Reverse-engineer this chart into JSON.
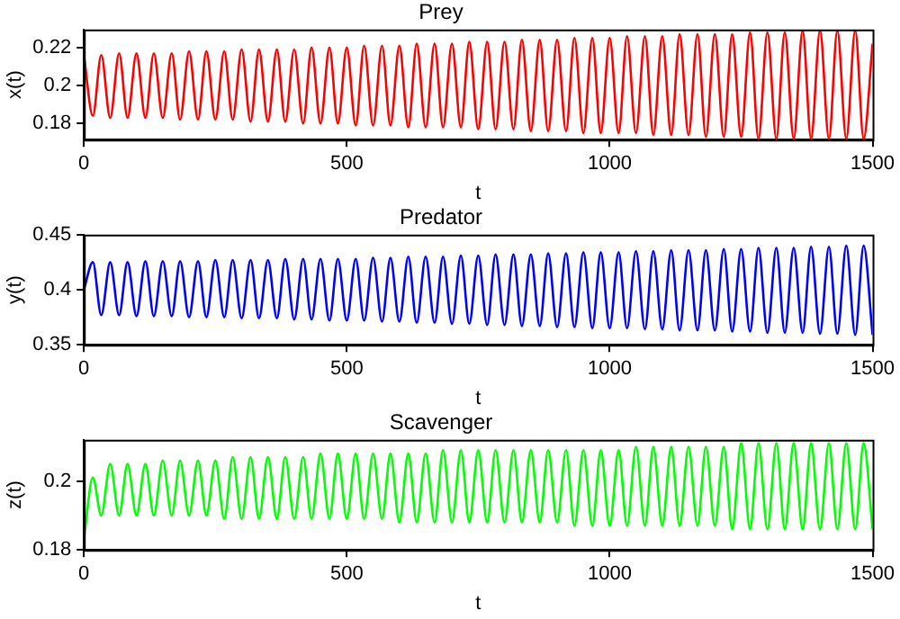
{
  "chart_data": [
    {
      "type": "line",
      "title": "Prey",
      "xlabel": "t",
      "ylabel": "x(t)",
      "xlim": [
        0,
        1500
      ],
      "xticks": [
        0,
        500,
        1000,
        1500
      ],
      "ylim": [
        0.1715,
        0.2295
      ],
      "yticks": [
        0.18,
        0.2,
        0.22
      ],
      "grid": false,
      "legend": false,
      "marker": "none",
      "line_style": "solid",
      "x": [
        0,
        17,
        33,
        50,
        67,
        83,
        100,
        117,
        133,
        150,
        167,
        183,
        200,
        217,
        233,
        250,
        267,
        283,
        300,
        317,
        333,
        350,
        367,
        383,
        400,
        417,
        433,
        450,
        467,
        483,
        500,
        517,
        533,
        550,
        567,
        583,
        600,
        617,
        633,
        650,
        667,
        683,
        700,
        717,
        733,
        750,
        767,
        783,
        800,
        817,
        833,
        850,
        867,
        883,
        900,
        917,
        933,
        950,
        967,
        983,
        1000,
        1017,
        1033,
        1050,
        1067,
        1083,
        1100,
        1117,
        1133,
        1150,
        1167,
        1183,
        1200,
        1217,
        1233,
        1250,
        1267,
        1283,
        1300,
        1317,
        1333,
        1350,
        1367,
        1383,
        1400,
        1417,
        1433,
        1450,
        1467,
        1483,
        1500
      ],
      "series": [
        {
          "color": "#ff0000",
          "values": [
            0.216,
            0.184,
            0.216,
            0.183,
            0.217,
            0.183,
            0.217,
            0.183,
            0.217,
            0.183,
            0.217,
            0.182,
            0.218,
            0.182,
            0.218,
            0.182,
            0.218,
            0.182,
            0.219,
            0.181,
            0.219,
            0.181,
            0.219,
            0.181,
            0.219,
            0.18,
            0.22,
            0.18,
            0.22,
            0.18,
            0.22,
            0.179,
            0.221,
            0.179,
            0.221,
            0.179,
            0.221,
            0.178,
            0.222,
            0.178,
            0.222,
            0.178,
            0.222,
            0.178,
            0.223,
            0.177,
            0.223,
            0.177,
            0.223,
            0.177,
            0.224,
            0.176,
            0.224,
            0.176,
            0.224,
            0.176,
            0.225,
            0.175,
            0.225,
            0.175,
            0.225,
            0.175,
            0.226,
            0.175,
            0.226,
            0.174,
            0.226,
            0.174,
            0.227,
            0.174,
            0.227,
            0.173,
            0.227,
            0.173,
            0.227,
            0.173,
            0.228,
            0.172,
            0.228,
            0.172,
            0.228,
            0.172,
            0.229,
            0.172,
            0.229,
            0.172,
            0.229,
            0.172,
            0.229,
            0.172,
            0.222
          ]
        }
      ]
    },
    {
      "type": "line",
      "title": "Predator",
      "xlabel": "t",
      "ylabel": "y(t)",
      "xlim": [
        0,
        1500
      ],
      "xticks": [
        0,
        500,
        1000,
        1500
      ],
      "ylim": [
        0.35,
        0.45
      ],
      "yticks": [
        0.35,
        0.4,
        0.45
      ],
      "grid": false,
      "legend": false,
      "marker": "none",
      "line_style": "solid",
      "x": [
        0,
        17,
        33,
        50,
        67,
        83,
        100,
        117,
        133,
        150,
        167,
        183,
        200,
        217,
        233,
        250,
        267,
        283,
        300,
        317,
        333,
        350,
        367,
        383,
        400,
        417,
        433,
        450,
        467,
        483,
        500,
        517,
        533,
        550,
        567,
        583,
        600,
        617,
        633,
        650,
        667,
        683,
        700,
        717,
        733,
        750,
        767,
        783,
        800,
        817,
        833,
        850,
        867,
        883,
        900,
        917,
        933,
        950,
        967,
        983,
        1000,
        1017,
        1033,
        1050,
        1067,
        1083,
        1100,
        1117,
        1133,
        1150,
        1167,
        1183,
        1200,
        1217,
        1233,
        1250,
        1267,
        1283,
        1300,
        1317,
        1333,
        1350,
        1367,
        1383,
        1400,
        1417,
        1433,
        1450,
        1467,
        1483,
        1500
      ],
      "series": [
        {
          "color": "#0000ff",
          "values": [
            0.4,
            0.425,
            0.377,
            0.425,
            0.377,
            0.425,
            0.376,
            0.426,
            0.376,
            0.426,
            0.376,
            0.426,
            0.375,
            0.426,
            0.375,
            0.427,
            0.375,
            0.427,
            0.374,
            0.427,
            0.374,
            0.427,
            0.374,
            0.428,
            0.373,
            0.428,
            0.373,
            0.428,
            0.372,
            0.428,
            0.372,
            0.428,
            0.372,
            0.429,
            0.371,
            0.429,
            0.371,
            0.43,
            0.37,
            0.43,
            0.37,
            0.43,
            0.369,
            0.431,
            0.369,
            0.431,
            0.368,
            0.432,
            0.368,
            0.432,
            0.367,
            0.432,
            0.367,
            0.433,
            0.366,
            0.433,
            0.366,
            0.434,
            0.365,
            0.434,
            0.365,
            0.434,
            0.365,
            0.435,
            0.364,
            0.435,
            0.364,
            0.436,
            0.363,
            0.436,
            0.363,
            0.436,
            0.363,
            0.437,
            0.362,
            0.437,
            0.362,
            0.438,
            0.361,
            0.438,
            0.361,
            0.438,
            0.361,
            0.439,
            0.36,
            0.439,
            0.36,
            0.44,
            0.359,
            0.44,
            0.359
          ]
        }
      ]
    },
    {
      "type": "line",
      "title": "Scavenger",
      "xlabel": "t",
      "ylabel": "z(t)",
      "xlim": [
        0,
        1500
      ],
      "xticks": [
        0,
        500,
        1000,
        1500
      ],
      "ylim": [
        0.18,
        0.212
      ],
      "yticks": [
        0.18,
        0.2
      ],
      "grid": false,
      "legend": false,
      "marker": "none",
      "line_style": "solid",
      "x": [
        0,
        17,
        33,
        50,
        67,
        83,
        100,
        117,
        133,
        150,
        167,
        183,
        200,
        217,
        233,
        250,
        267,
        283,
        300,
        317,
        333,
        350,
        367,
        383,
        400,
        417,
        433,
        450,
        467,
        483,
        500,
        517,
        533,
        550,
        567,
        583,
        600,
        617,
        633,
        650,
        667,
        683,
        700,
        717,
        733,
        750,
        767,
        783,
        800,
        817,
        833,
        850,
        867,
        883,
        900,
        917,
        933,
        950,
        967,
        983,
        1000,
        1017,
        1033,
        1050,
        1067,
        1083,
        1100,
        1117,
        1133,
        1150,
        1167,
        1183,
        1200,
        1217,
        1233,
        1250,
        1267,
        1283,
        1300,
        1317,
        1333,
        1350,
        1367,
        1383,
        1400,
        1417,
        1433,
        1450,
        1467,
        1483,
        1500
      ],
      "series": [
        {
          "color": "#00ff00",
          "values": [
            0.183,
            0.201,
            0.19,
            0.205,
            0.19,
            0.205,
            0.19,
            0.205,
            0.19,
            0.206,
            0.19,
            0.206,
            0.19,
            0.206,
            0.19,
            0.206,
            0.189,
            0.207,
            0.189,
            0.207,
            0.189,
            0.207,
            0.189,
            0.207,
            0.189,
            0.207,
            0.189,
            0.208,
            0.189,
            0.208,
            0.189,
            0.208,
            0.189,
            0.208,
            0.189,
            0.208,
            0.188,
            0.208,
            0.188,
            0.208,
            0.188,
            0.209,
            0.188,
            0.209,
            0.188,
            0.209,
            0.188,
            0.209,
            0.188,
            0.209,
            0.188,
            0.209,
            0.188,
            0.209,
            0.188,
            0.209,
            0.187,
            0.209,
            0.187,
            0.209,
            0.187,
            0.209,
            0.187,
            0.21,
            0.187,
            0.21,
            0.187,
            0.21,
            0.187,
            0.21,
            0.187,
            0.21,
            0.187,
            0.21,
            0.186,
            0.211,
            0.186,
            0.211,
            0.186,
            0.211,
            0.186,
            0.211,
            0.186,
            0.211,
            0.186,
            0.211,
            0.186,
            0.211,
            0.186,
            0.211,
            0.186
          ]
        }
      ]
    }
  ]
}
